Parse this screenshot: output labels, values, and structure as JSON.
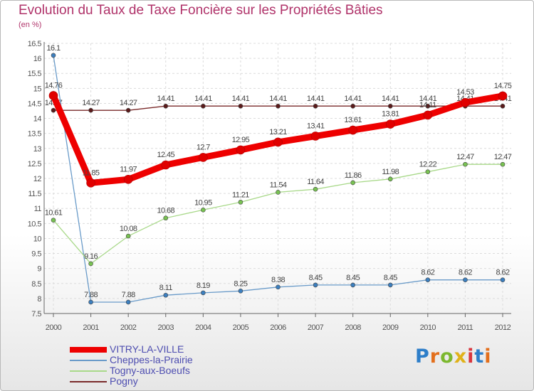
{
  "title": "Evolution du Taux de Taxe Foncière sur les Propriétés Bâties",
  "unit": "(en %)",
  "logo": {
    "text": "Proxiti",
    "colors": [
      "#2d7ec9",
      "#e36f1c",
      "#7cb82f",
      "#e0b21a",
      "#d9363e",
      "#2d7ec9",
      "#e36f1c"
    ]
  },
  "chart_data": {
    "type": "line",
    "x": [
      "2000",
      "2001",
      "2002",
      "2003",
      "2004",
      "2005",
      "2006",
      "2007",
      "2008",
      "2009",
      "2010",
      "2011",
      "2012"
    ],
    "ylim": [
      7.5,
      16.5
    ],
    "yticks": [
      "7.5",
      "8",
      "8.5",
      "9",
      "9.5",
      "10",
      "10.5",
      "11",
      "11.5",
      "12",
      "12.5",
      "13",
      "13.5",
      "14",
      "14.5",
      "15",
      "15.5",
      "16",
      "16.5"
    ],
    "grid": true,
    "series": [
      {
        "name": "Pogny",
        "color": "#7a2a2a",
        "marker": "#5a1a1a",
        "width": 1.3,
        "values": [
          14.27,
          14.27,
          14.27,
          14.41,
          14.41,
          14.41,
          14.41,
          14.41,
          14.41,
          14.41,
          14.41,
          14.41,
          14.41
        ],
        "labels": [
          "14.27",
          "14.27",
          "14.27",
          "14.41",
          "14.41",
          "14.41",
          "14.41",
          "14.41",
          "14.41",
          "14.41",
          "14.41",
          "14.41",
          "14.41"
        ]
      },
      {
        "name": "Cheppes-la-Prairie",
        "color": "#6a9bc9",
        "marker": "#3c7fbf",
        "width": 1.3,
        "values": [
          16.1,
          7.88,
          7.88,
          8.11,
          8.19,
          8.25,
          8.38,
          8.45,
          8.45,
          8.45,
          8.62,
          8.62,
          8.62
        ],
        "labels": [
          "16.1",
          "7.88",
          "7.88",
          "8.11",
          "8.19",
          "8.25",
          "8.38",
          "8.45",
          "8.45",
          "8.45",
          "8.62",
          "8.62",
          "8.62"
        ]
      },
      {
        "name": "Togny-aux-Boeufs",
        "color": "#a9d98a",
        "marker": "#78c252",
        "width": 1.3,
        "values": [
          10.61,
          9.16,
          10.08,
          10.68,
          10.95,
          11.21,
          11.54,
          11.64,
          11.86,
          11.98,
          12.22,
          12.47,
          12.47
        ],
        "labels": [
          "10.61",
          "9.16",
          "10.08",
          "10.68",
          "10.95",
          "11.21",
          "11.54",
          "11.64",
          "11.86",
          "11.98",
          "12.22",
          "12.47",
          "12.47"
        ]
      },
      {
        "name": "VITRY-LA-VILLE",
        "color": "#ee0000",
        "marker": "#e00000",
        "width": 9,
        "values": [
          14.76,
          11.85,
          11.97,
          12.45,
          12.7,
          12.95,
          13.21,
          13.41,
          13.61,
          13.81,
          14.11,
          14.53,
          14.75
        ],
        "labels": [
          "14.76",
          "11.85",
          "11.97",
          "12.45",
          "12.7",
          "12.95",
          "13.21",
          "13.41",
          "13.61",
          "13.81",
          "14.11",
          "14.53",
          "14.75"
        ]
      }
    ],
    "legend": [
      "VITRY-LA-VILLE",
      "Cheppes-la-Prairie",
      "Togny-aux-Boeufs",
      "Pogny"
    ]
  }
}
